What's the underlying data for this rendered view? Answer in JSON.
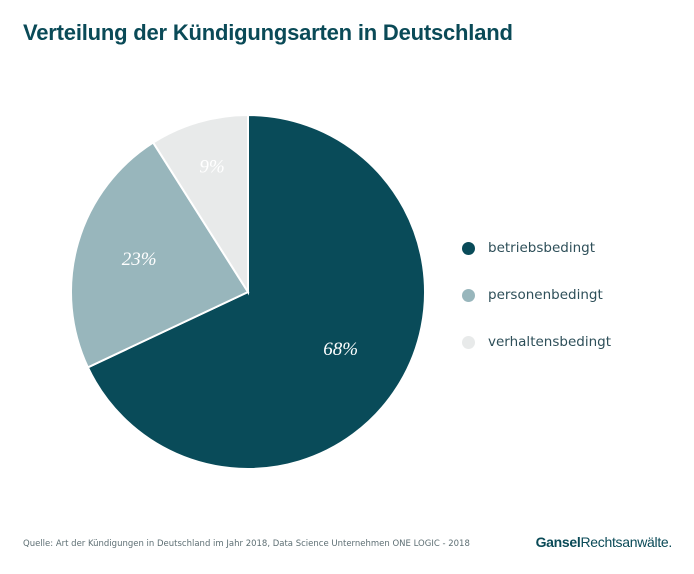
{
  "chart_data": {
    "type": "pie",
    "title": "Verteilung der Kündigungsarten in Deutschland",
    "slices": [
      {
        "label": "betriebsbedingt",
        "value": 68,
        "value_label": "68%",
        "color": "#094b59"
      },
      {
        "label": "personenbedingt",
        "value": 23,
        "value_label": "23%",
        "color": "#98b6bc"
      },
      {
        "label": "verhaltensbedingt",
        "value": 9,
        "value_label": "9%",
        "color": "#e8eaea"
      }
    ],
    "legend_position": "right",
    "start_angle": "12 o'clock",
    "direction": "clockwise"
  },
  "footer": {
    "source": "Quelle: Art der Kündigungen in Deutschland im Jahr 2018, Data Science Unternehmen ONE LOGIC - 2018",
    "brand_part1": "Gansel",
    "brand_part2": "Rechtsanwälte."
  }
}
